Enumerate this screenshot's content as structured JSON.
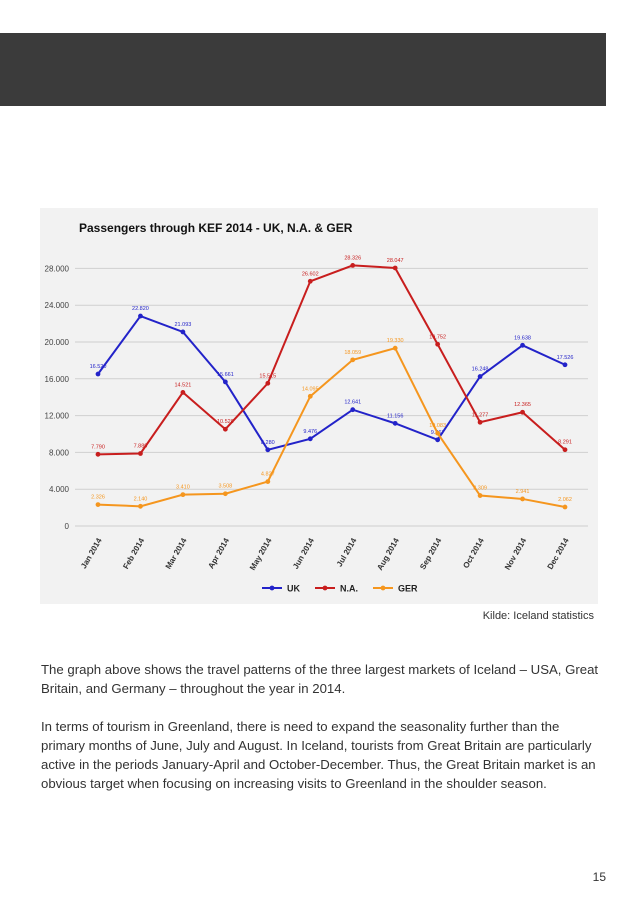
{
  "header": {
    "band_color": "#3b3b3b"
  },
  "source": {
    "text": "Kilde: Iceland statistics"
  },
  "body": {
    "p1": "The graph above shows the travel patterns of the three largest markets of Iceland – USA, Great Britain, and Germany – throughout the year in 2014.",
    "p2": "In terms of tourism in Greenland, there is need to expand the seasonality further than the primary months of June, July and August. In Iceland, tourists from Great Britain are particularly active in the periods January-April and October-December. Thus, the Great Britain market is an obvious target when focusing on increasing visits to Greenland in the shoulder season."
  },
  "page_number": "15",
  "chart_data": {
    "type": "line",
    "title": "Passengers through KEF 2014 - UK, N.A. & GER",
    "categories": [
      "Jan 2014",
      "Feb 2014",
      "Mar 2014",
      "Apr 2014",
      "May 2014",
      "Jun 2014",
      "Jul 2014",
      "Aug 2014",
      "Sep 2014",
      "Oct 2014",
      "Nov 2014",
      "Dec 2014"
    ],
    "yticks": [
      "0",
      "4.000",
      "8.000",
      "12.000",
      "16.000",
      "20.000",
      "24.000",
      "28.000"
    ],
    "ylim": [
      0,
      30000
    ],
    "grid": true,
    "legend_position": "bottom",
    "series": [
      {
        "name": "UK",
        "color": "#2323c9",
        "values": [
          16520,
          22820,
          21093,
          15661,
          8280,
          9476,
          12641,
          11156,
          9367,
          16248,
          19638,
          17526
        ],
        "labels": [
          "16.520",
          "22.820",
          "21.093",
          "15.661",
          "8.280",
          "9.476",
          "12.641",
          "11.156",
          "9.367",
          "16.248",
          "19.638",
          "17.526"
        ]
      },
      {
        "name": "N.A.",
        "color": "#c81e1e",
        "values": [
          7790,
          7880,
          14521,
          10520,
          15515,
          26602,
          28326,
          28047,
          19752,
          11277,
          12365,
          8291
        ],
        "labels": [
          "7.790",
          "7.880",
          "14.521",
          "10.520",
          "15.515",
          "26.602",
          "28.326",
          "28.047",
          "19.752",
          "11.277",
          "12.365",
          "8.291"
        ]
      },
      {
        "name": "GER",
        "color": "#f5961e",
        "values": [
          2326,
          2140,
          3410,
          3508,
          4827,
          14095,
          18059,
          19330,
          10083,
          3309,
          2941,
          2062
        ],
        "labels": [
          "2.326",
          "2.140",
          "3.410",
          "3.508",
          "4.827",
          "14.095",
          "18.059",
          "19.330",
          "10.083",
          "3.309",
          "2.941",
          "2.062"
        ]
      }
    ]
  }
}
